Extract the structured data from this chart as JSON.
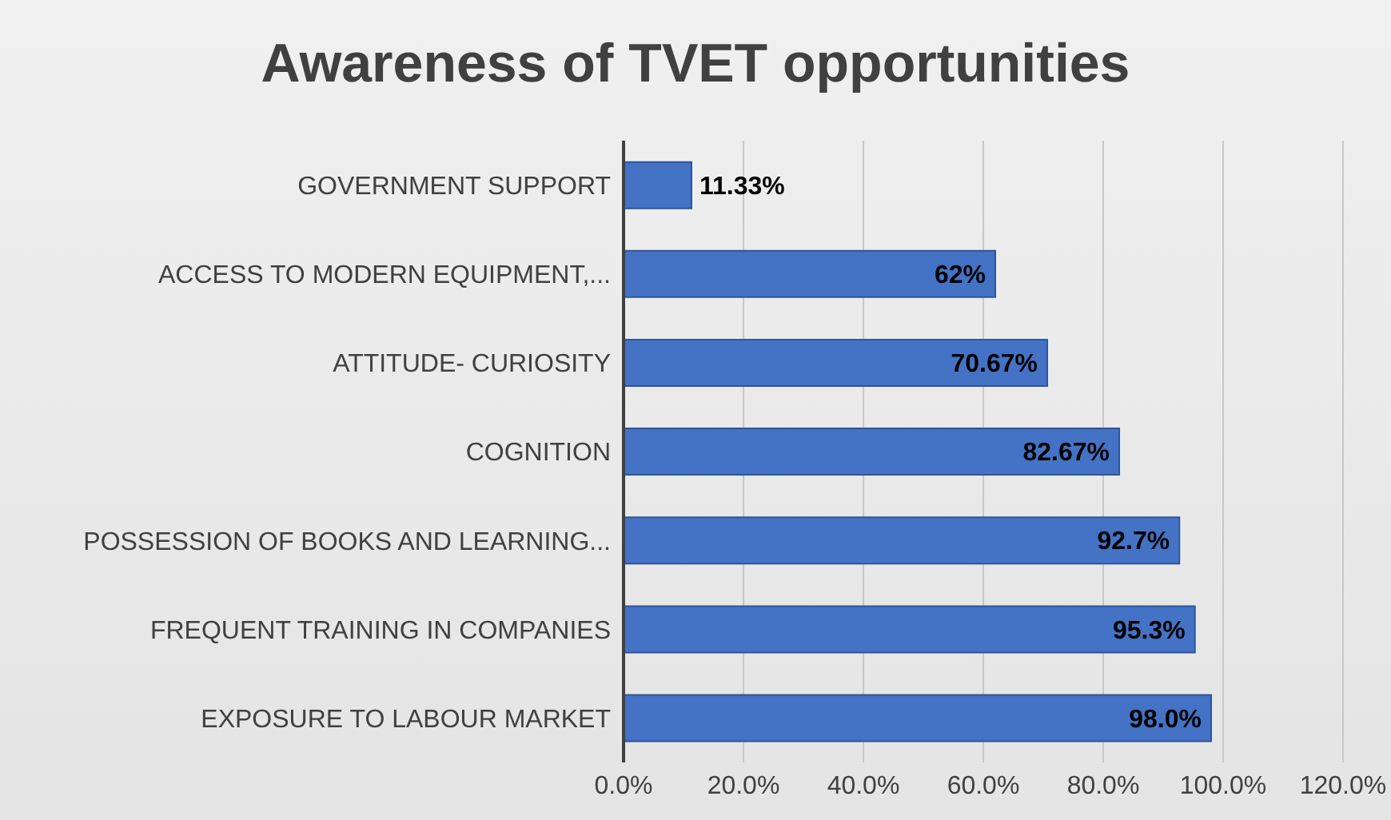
{
  "chart_data": {
    "type": "bar",
    "orientation": "horizontal",
    "title": "Awareness of TVET opportunities",
    "categories": [
      "GOVERNMENT SUPPORT",
      "ACCESS TO MODERN EQUIPMENT,...",
      "ATTITUDE- CURIOSITY",
      "COGNITION",
      "POSSESSION OF BOOKS AND LEARNING...",
      "FREQUENT TRAINING IN COMPANIES",
      "EXPOSURE TO LABOUR MARKET"
    ],
    "values": [
      11.33,
      62,
      70.67,
      82.67,
      92.7,
      95.3,
      98.0
    ],
    "value_labels": [
      "11.33%",
      "62%",
      "70.67%",
      "82.67%",
      "92.7%",
      "95.3%",
      "98.0%"
    ],
    "color": "#4472c4",
    "xlim": [
      0,
      120
    ],
    "xticks": [
      {
        "value": 0,
        "label": "0.0%"
      },
      {
        "value": 20,
        "label": "20.0%"
      },
      {
        "value": 40,
        "label": "40.0%"
      },
      {
        "value": 60,
        "label": "60.0%"
      },
      {
        "value": 80,
        "label": "80.0%"
      },
      {
        "value": 100,
        "label": "100.0%"
      },
      {
        "value": 120,
        "label": "120.0%"
      }
    ],
    "grid": "x",
    "legend": false
  }
}
